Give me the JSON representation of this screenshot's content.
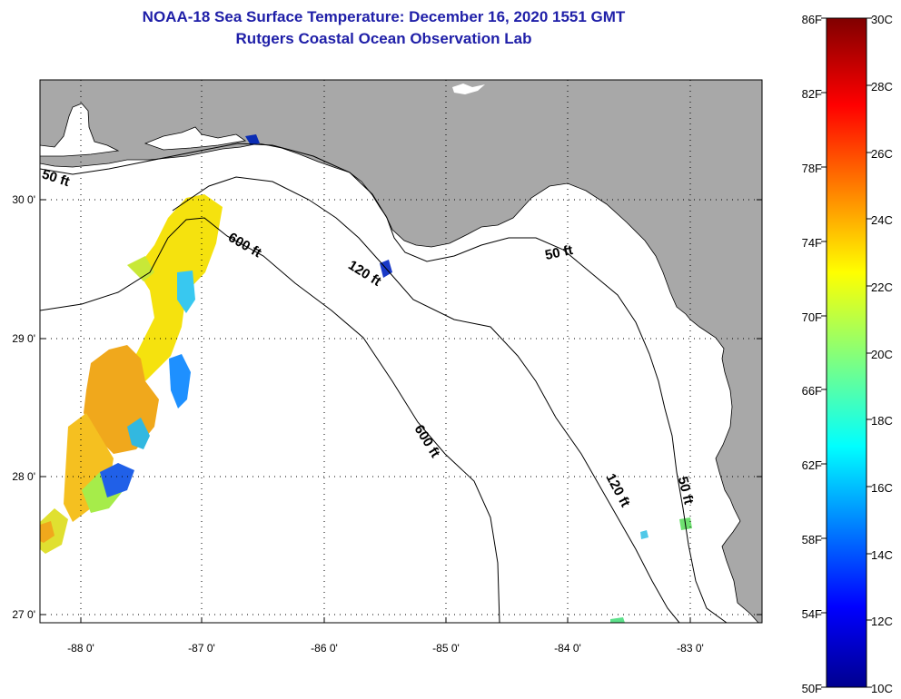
{
  "title": {
    "line1": "NOAA-18 Sea Surface Temperature:  December 16, 2020 1551 GMT",
    "line2": "Rutgers Coastal Ocean Observation Lab"
  },
  "map": {
    "longitude_labels": [
      "-88 0'",
      "-87 0'",
      "-86 0'",
      "-85 0'",
      "-84 0'",
      "-83 0'"
    ],
    "latitude_labels": [
      "30 0'",
      "29 0'",
      "28 0'",
      "27 0'"
    ],
    "depth_labels": [
      "50 ft",
      "600 ft",
      "120 ft",
      "50 ft",
      "600 ft",
      "120 ft",
      "50 ft"
    ],
    "colors": {
      "land": "#a8a8a8",
      "ocean": "#ffffff"
    }
  },
  "colorbar": {
    "fahrenheit_labels": [
      "86F",
      "82F",
      "78F",
      "74F",
      "70F",
      "66F",
      "62F",
      "58F",
      "54F",
      "50F"
    ],
    "celsius_labels": [
      "30C",
      "28C",
      "26C",
      "24C",
      "22C",
      "20C",
      "18C",
      "16C",
      "14C",
      "12C",
      "10C"
    ],
    "colormap": "jet"
  }
}
